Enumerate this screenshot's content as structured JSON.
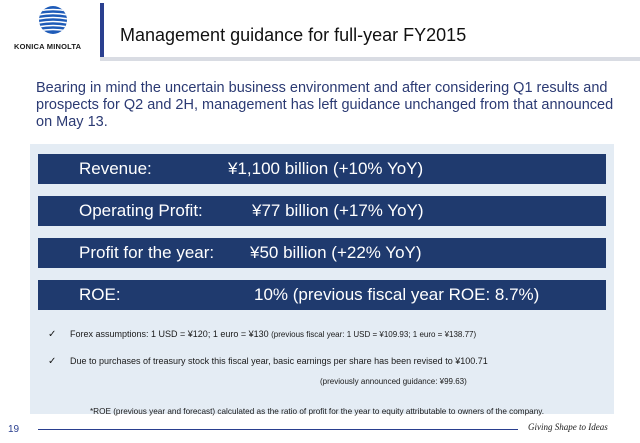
{
  "logo": {
    "text": "KONICA MINOLTA"
  },
  "title": "Management guidance for full-year FY2015",
  "intro": "Bearing in mind the uncertain business environment and after considering Q1 results and prospects for Q2 and 2H, management has left guidance unchanged from that announced on May 13.",
  "metrics": [
    {
      "label": "Revenue:",
      "value": "¥1,100 billion (+10% YoY)"
    },
    {
      "label": "Operating Profit:",
      "value": "¥77 billion (+17% YoY)"
    },
    {
      "label": "Profit for the year:",
      "value": "¥50 billion (+22% YoY)"
    },
    {
      "label": "ROE:",
      "value": "10% (previous fiscal year ROE: 8.7%)"
    }
  ],
  "notes": {
    "check_glyph": "✓",
    "forex_main": "Forex assumptions: 1 USD = ¥120; 1 euro = ¥130",
    "forex_previous": "(previous fiscal year: 1 USD = ¥109.93; 1 euro = ¥138.77)",
    "eps_main": "Due to purchases of treasury stock this fiscal year, basic earnings per share has been revised to ¥100.71",
    "eps_previous": "(previously announced guidance: ¥99.63)",
    "roe_footnote": "*ROE (previous year and forecast) calculated as the ratio of profit for the year to equity attributable to owners of the company."
  },
  "footer": {
    "page_number": "19",
    "tagline": "Giving Shape to Ideas"
  },
  "colors": {
    "bar": "#1f3a6e",
    "accent": "#2a3f8f",
    "intro_text": "#2b3a73",
    "panel": "#e4ecf4"
  }
}
